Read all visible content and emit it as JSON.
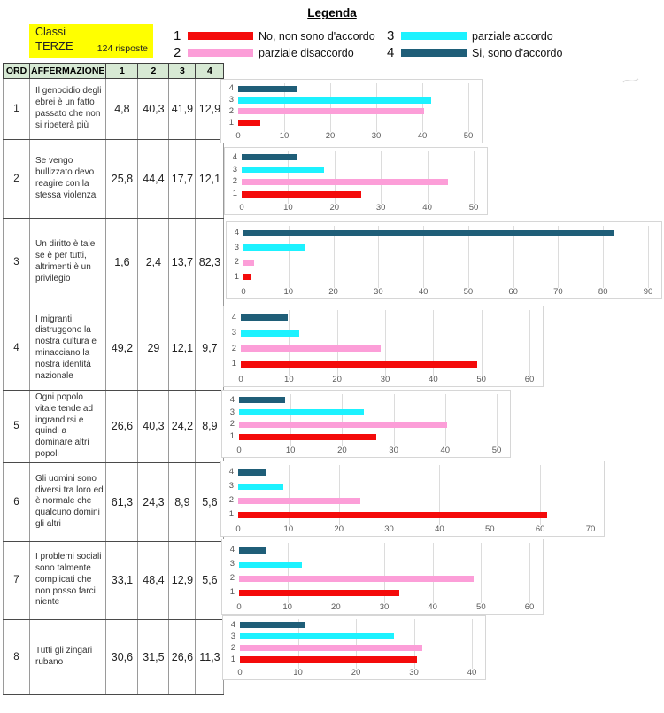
{
  "page_title": "Legenda",
  "class_box": {
    "line1": "Classi",
    "line2": "TERZE",
    "responses": "124 risposte",
    "background": "#ffff00"
  },
  "colors": {
    "1": "#f40b0b",
    "2": "#fc9ed8",
    "3": "#1df2ff",
    "4": "#1f5e78",
    "header_green": "#d7e9d4"
  },
  "legend": [
    {
      "num": "1",
      "label": "No, non sono d'accordo",
      "color_key": "1"
    },
    {
      "num": "2",
      "label": "parziale disaccordo",
      "color_key": "2"
    },
    {
      "num": "3",
      "label": "parziale accordo",
      "color_key": "3"
    },
    {
      "num": "4",
      "label": "Si, sono d'accordo",
      "color_key": "4"
    }
  ],
  "table": {
    "headers": [
      "ORD",
      "AFFERMAZIONE",
      "1",
      "2",
      "3",
      "4"
    ],
    "rows": [
      {
        "ord": "1",
        "statement": "Il genocidio degli ebrei è un fatto passato che non si ripeterà più",
        "values": [
          "4,8",
          "40,3",
          "41,9",
          "12,9"
        ]
      },
      {
        "ord": "2",
        "statement": "Se vengo bullizzato devo reagire con la stessa violenza",
        "values": [
          "25,8",
          "44,4",
          "17,7",
          "12,1"
        ]
      },
      {
        "ord": "3",
        "statement": "Un diritto è tale se è per tutti, altrimenti è un privilegio",
        "values": [
          "1,6",
          "2,4",
          "13,7",
          "82,3"
        ]
      },
      {
        "ord": "4",
        "statement": "I migranti distruggono la nostra cultura e minacciano la nostra identità nazionale",
        "values": [
          "49,2",
          "29",
          "12,1",
          "9,7"
        ]
      },
      {
        "ord": "5",
        "statement": "Ogni popolo vitale tende ad ingrandirsi e quindi a dominare altri popoli",
        "values": [
          "26,6",
          "40,3",
          "24,2",
          "8,9"
        ]
      },
      {
        "ord": "6",
        "statement": "Gli uomini sono diversi tra loro ed è normale che qualcuno domini gli altri",
        "values": [
          "61,3",
          "24,3",
          "8,9",
          "5,6"
        ]
      },
      {
        "ord": "7",
        "statement": "I problemi sociali sono talmente complicati che non posso farci niente",
        "values": [
          "33,1",
          "48,4",
          "12,9",
          "5,6"
        ]
      },
      {
        "ord": "8",
        "statement": "Tutti gli zingari rubano",
        "values": [
          "30,6",
          "31,5",
          "26,6",
          "11,3"
        ]
      }
    ]
  },
  "chart_data": [
    {
      "type": "bar",
      "orientation": "horizontal",
      "row": 1,
      "categories": [
        "4",
        "3",
        "2",
        "1"
      ],
      "values": [
        12.9,
        41.9,
        40.3,
        4.8
      ],
      "xlim": [
        0,
        50
      ],
      "tick_step": 10,
      "grid": true,
      "legend_position": "none"
    },
    {
      "type": "bar",
      "orientation": "horizontal",
      "row": 2,
      "categories": [
        "4",
        "3",
        "2",
        "1"
      ],
      "values": [
        12.1,
        17.7,
        44.4,
        25.8
      ],
      "xlim": [
        0,
        50
      ],
      "tick_step": 10,
      "grid": true,
      "legend_position": "none"
    },
    {
      "type": "bar",
      "orientation": "horizontal",
      "row": 3,
      "categories": [
        "4",
        "3",
        "2",
        "1"
      ],
      "values": [
        82.3,
        13.7,
        2.4,
        1.6
      ],
      "xlim": [
        0,
        90
      ],
      "tick_step": 10,
      "grid": true,
      "legend_position": "none"
    },
    {
      "type": "bar",
      "orientation": "horizontal",
      "row": 4,
      "categories": [
        "4",
        "3",
        "2",
        "1"
      ],
      "values": [
        9.7,
        12.1,
        29,
        49.2
      ],
      "xlim": [
        0,
        60
      ],
      "tick_step": 10,
      "grid": true,
      "legend_position": "none"
    },
    {
      "type": "bar",
      "orientation": "horizontal",
      "row": 5,
      "categories": [
        "4",
        "3",
        "2",
        "1"
      ],
      "values": [
        8.9,
        24.2,
        40.3,
        26.6
      ],
      "xlim": [
        0,
        50
      ],
      "tick_step": 10,
      "grid": true,
      "legend_position": "none"
    },
    {
      "type": "bar",
      "orientation": "horizontal",
      "row": 6,
      "categories": [
        "4",
        "3",
        "2",
        "1"
      ],
      "values": [
        5.6,
        8.9,
        24.3,
        61.3
      ],
      "xlim": [
        0,
        70
      ],
      "tick_step": 10,
      "grid": true,
      "legend_position": "none"
    },
    {
      "type": "bar",
      "orientation": "horizontal",
      "row": 7,
      "categories": [
        "4",
        "3",
        "2",
        "1"
      ],
      "values": [
        5.6,
        12.9,
        48.4,
        33.1
      ],
      "xlim": [
        0,
        60
      ],
      "tick_step": 10,
      "grid": true,
      "legend_position": "none"
    },
    {
      "type": "bar",
      "orientation": "horizontal",
      "row": 8,
      "categories": [
        "4",
        "3",
        "2",
        "1"
      ],
      "values": [
        11.3,
        26.6,
        31.5,
        30.6
      ],
      "xlim": [
        0,
        40
      ],
      "tick_step": 10,
      "grid": true,
      "legend_position": "none"
    }
  ]
}
